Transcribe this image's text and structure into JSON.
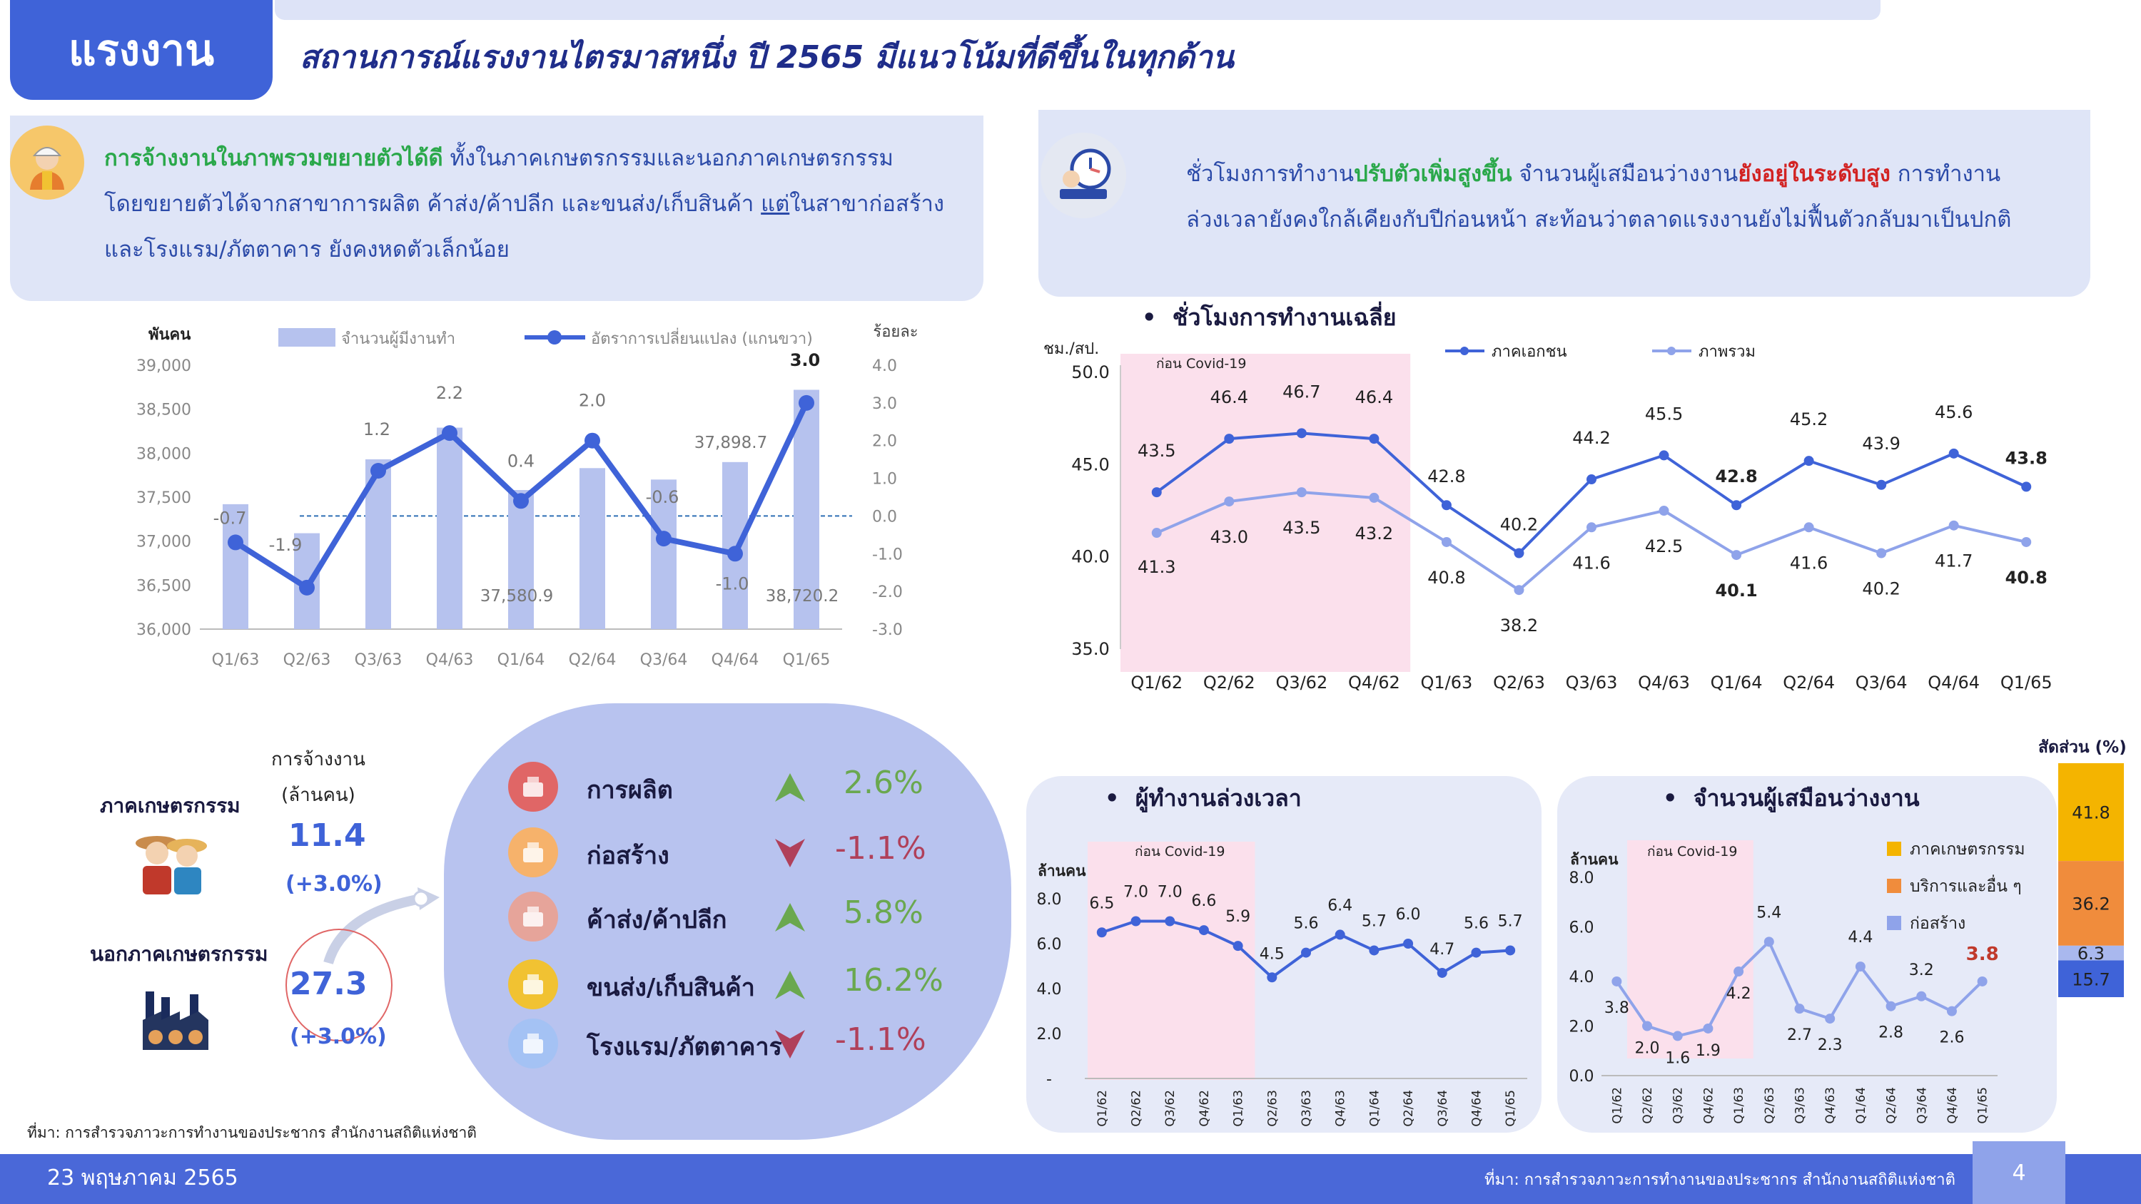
{
  "header": {
    "badge": "แรงงาน",
    "headline": "สถานการณ์แรงงานไตรมาสหนึ่ง ปี 2565 มีแนวโน้มที่ดีขึ้นในทุกด้าน"
  },
  "left_panel": {
    "highlight": "การจ้างงานในภาพรวมขยายตัวได้ดี",
    "line1_rest": " ทั้งในภาคเกษตรกรรมและนอกภาคเกษตรกรรม",
    "line2_a": "โดยขยายตัวได้จากสาขาการผลิต ค้าส่ง/ค้าปลีก และขนส่ง/เก็บสินค้า ",
    "line2_u": "แต่",
    "line2_b": "ในสาขาก่อสร้าง",
    "line3": "และโรงแรม/ภัตตาคาร ยังคงหดตัวเล็กน้อย"
  },
  "right_panel": {
    "t1": "ชั่วโมงการทำงาน",
    "t2": "ปรับตัวเพิ่มสูงขึ้น",
    "t3": " จำนวนผู้เสมือนว่างงาน",
    "t4": "ยังอยู่ในระดับสูง",
    "t5": " การทำงาน",
    "line2": "ล่วงเวลายังคงใกล้เคียงกับปีก่อนหน้า สะท้อนว่าตลาดแรงงานยังไม่ฟื้นตัวกลับมาเป็นปกติ"
  },
  "employment_block": {
    "heading_line1": "การจ้างงาน",
    "heading_line2": "(ล้านคน)",
    "agri_label": "ภาคเกษตรกรรม",
    "agri_value": "11.4",
    "agri_change": "(+3.0%)",
    "nonagri_label": "นอกภาคเกษตรกรรม",
    "nonagri_value": "27.3",
    "nonagri_change": "(+3.0%)"
  },
  "sectors": [
    {
      "label": "การผลิต",
      "value": "2.6%",
      "direction": "up"
    },
    {
      "label": "ก่อสร้าง",
      "value": "-1.1%",
      "direction": "down"
    },
    {
      "label": "ค้าส่ง/ค้าปลีก",
      "value": "5.8%",
      "direction": "up"
    },
    {
      "label": "ขนส่ง/เก็บสินค้า",
      "value": "16.2%",
      "direction": "up"
    },
    {
      "label": "โรงแรม/ภัตตาคาร",
      "value": "-1.1%",
      "direction": "down"
    }
  ],
  "colors": {
    "up": "#6aa84f",
    "down": "#b0405a",
    "navy": "#3f63d8",
    "light": "#8fa3ea",
    "bar": "#b6c2ee",
    "covid": "#fbe0ec"
  },
  "source_note": "ที่มา:  การสำรวจภาวะการทำงานของประชากร สำนักงานสถิติแห่งชาติ",
  "footer": {
    "date": "23 พฤษภาคม  2565",
    "source": "ที่มา:  การสำรวจภาวะการทำงานของประชากร สำนักงานสถิติแห่งชาติ",
    "page": "4"
  },
  "chart_data": [
    {
      "id": "employment",
      "type": "bar",
      "categories": [
        "Q1/63",
        "Q2/63",
        "Q3/63",
        "Q4/63",
        "Q1/64",
        "Q2/64",
        "Q3/64",
        "Q4/64",
        "Q1/65"
      ],
      "series": [
        {
          "name": "จำนวนผู้มีงานทำ",
          "type": "bar",
          "axis": "left",
          "values": [
            37420,
            37090,
            37930,
            38290,
            37580.9,
            37830,
            37700,
            37898.7,
            38720.2
          ],
          "labels": [
            "",
            "",
            "",
            "",
            "37,580.9",
            "",
            "",
            "37,898.7",
            "38,720.2"
          ]
        },
        {
          "name": "อัตราการเปลี่ยนแปลง (แกนขวา)",
          "type": "line",
          "axis": "right",
          "values": [
            -0.7,
            -1.9,
            1.2,
            2.2,
            0.4,
            2.0,
            -0.6,
            -1.0,
            3.0
          ]
        }
      ],
      "ylabel_left": "พันคน",
      "ylabel_right": "ร้อยละ",
      "ylim_left": [
        36000,
        39000
      ],
      "ylim_right": [
        -3.0,
        4.0
      ],
      "yticks_left": [
        "36,000",
        "36,500",
        "37,000",
        "37,500",
        "38,000",
        "38,500",
        "39,000"
      ],
      "yticks_right": [
        "-3.0",
        "-2.0",
        "-1.0",
        "0.0",
        "1.0",
        "2.0",
        "3.0",
        "4.0"
      ]
    },
    {
      "id": "hours",
      "type": "line",
      "title": "ชั่วโมงการทำงานเฉลี่ย",
      "ylabel": "ชม./สป.",
      "categories": [
        "Q1/62",
        "Q2/62",
        "Q3/62",
        "Q4/62",
        "Q1/63",
        "Q2/63",
        "Q3/63",
        "Q4/63",
        "Q1/64",
        "Q2/64",
        "Q3/64",
        "Q4/64",
        "Q1/65"
      ],
      "series": [
        {
          "name": "ภาคเอกชน",
          "values": [
            43.5,
            46.4,
            46.7,
            46.4,
            42.8,
            40.2,
            44.2,
            45.5,
            42.8,
            45.2,
            43.9,
            45.6,
            43.8
          ]
        },
        {
          "name": "ภาพรวม",
          "values": [
            41.3,
            43.0,
            43.5,
            43.2,
            40.8,
            38.2,
            41.6,
            42.5,
            40.1,
            41.6,
            40.2,
            41.7,
            40.8
          ]
        }
      ],
      "ylim": [
        35.0,
        50.0
      ],
      "yticks": [
        "35.0",
        "40.0",
        "45.0",
        "50.0"
      ],
      "annotation": "ก่อน Covid-19"
    },
    {
      "id": "overtime",
      "type": "line",
      "title": "ผู้ทำงานล่วงเวลา",
      "ylabel": "ล้านคน",
      "categories": [
        "Q1/62",
        "Q2/62",
        "Q3/62",
        "Q4/62",
        "Q1/63",
        "Q2/63",
        "Q3/63",
        "Q4/63",
        "Q1/64",
        "Q2/64",
        "Q3/64",
        "Q4/64",
        "Q1/65"
      ],
      "values": [
        6.5,
        7.0,
        7.0,
        6.6,
        5.9,
        4.5,
        5.6,
        6.4,
        5.7,
        6.0,
        4.7,
        5.6,
        5.7
      ],
      "ylim": [
        0,
        8.0
      ],
      "yticks": [
        "-",
        "2.0",
        "4.0",
        "6.0",
        "8.0"
      ],
      "annotation": "ก่อน Covid-19"
    },
    {
      "id": "underemployed",
      "type": "line",
      "title": "จำนวนผู้เสมือนว่างงาน",
      "ylabel": "ล้านคน",
      "categories": [
        "Q1/62",
        "Q2/62",
        "Q3/62",
        "Q4/62",
        "Q1/63",
        "Q2/63",
        "Q3/63",
        "Q4/63",
        "Q1/64",
        "Q2/64",
        "Q3/64",
        "Q4/64",
        "Q1/65"
      ],
      "values": [
        3.8,
        2.0,
        1.6,
        1.9,
        4.2,
        5.4,
        2.7,
        2.3,
        4.4,
        2.8,
        3.2,
        2.6,
        3.8
      ],
      "ylim": [
        0,
        8.0
      ],
      "yticks": [
        "0.0",
        "2.0",
        "4.0",
        "6.0",
        "8.0"
      ],
      "annotation": "ก่อน Covid-19",
      "legend": [
        "ภาคเกษตรกรรม",
        "บริการและอื่น ๆ",
        "ก่อสร้าง"
      ]
    },
    {
      "id": "share",
      "type": "bar",
      "title": "สัดส่วน (%)",
      "stack": [
        {
          "name": "ภาคเกษตรกรรม",
          "value": 41.8
        },
        {
          "name": "บริการและอื่น ๆ",
          "value": 36.2
        },
        {
          "name": "",
          "value": 6.3
        },
        {
          "name": "ก่อสร้าง",
          "value": 15.7
        }
      ]
    }
  ]
}
